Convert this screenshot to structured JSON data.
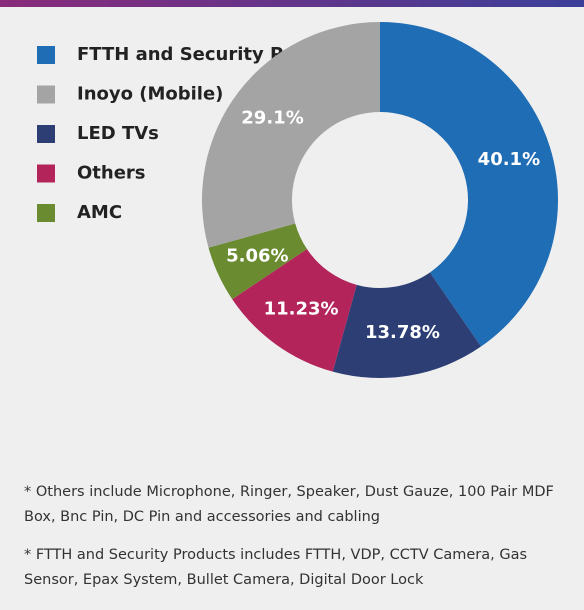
{
  "chart_data": {
    "type": "donut",
    "categories": [
      "FTTH and Security Products",
      "Inoyo (Mobile)",
      "LED TVs",
      "Others",
      "AMC"
    ],
    "values": [
      40.1,
      29.1,
      13.78,
      11.23,
      5.06
    ],
    "value_labels": [
      "40.1%",
      "29.1%",
      "13.78%",
      "11.23%",
      "5.06%"
    ],
    "colors": [
      "#1f6db5",
      "#a4a4a4",
      "#2c3e74",
      "#b3245a",
      "#6a8b30"
    ],
    "notes": [
      "* Others include Microphone, Ringer, Speaker, Dust Gauze, 100 Pair MDF Box, Bnc Pin, DC Pin and accessories and cabling",
      "* FTTH and Security Products includes FTTH, VDP, CCTV Camera, Gas Sensor, Epax System, Bullet Camera, Digital Door Lock"
    ]
  }
}
